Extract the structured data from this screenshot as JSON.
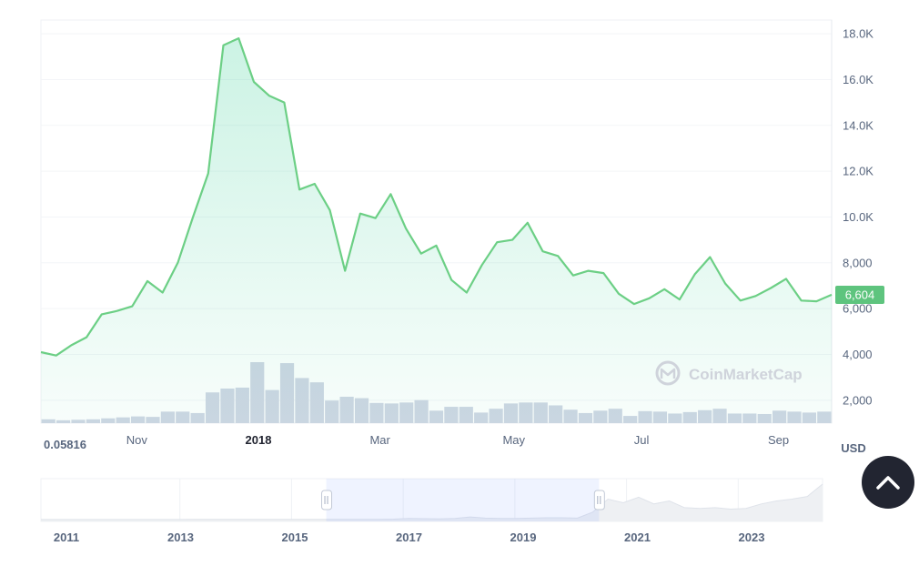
{
  "chart_data": {
    "type": "line",
    "price_series": {
      "values": [
        4100,
        3950,
        4400,
        4750,
        5750,
        5900,
        6100,
        7200,
        6700,
        8000,
        10000,
        11900,
        17500,
        17800,
        15900,
        15300,
        15000,
        11200,
        11450,
        10300,
        7650,
        10150,
        9950,
        11000,
        9500,
        8400,
        8750,
        7250,
        6700,
        7900,
        8900,
        9000,
        9750,
        8500,
        8300,
        7450,
        7650,
        7550,
        6650,
        6200,
        6450,
        6850,
        6400,
        7500,
        8250,
        7100,
        6350,
        6550,
        6900,
        7300,
        6350,
        6320,
        6604
      ],
      "color": "#6ccf85",
      "fill_color": "#16c784"
    },
    "volume_series": {
      "values": [
        0.8,
        0.6,
        0.7,
        0.8,
        1.0,
        1.2,
        1.4,
        1.3,
        2.4,
        2.4,
        2.1,
        6.4,
        7.2,
        7.4,
        12.7,
        6.9,
        12.5,
        9.4,
        8.5,
        4.7,
        5.5,
        5.2,
        4.2,
        4.1,
        4.3,
        4.8,
        2.6,
        3.4,
        3.4,
        2.2,
        3.0,
        4.1,
        4.3,
        4.3,
        3.7,
        2.8,
        2.1,
        2.6,
        3.0,
        1.5,
        2.5,
        2.4,
        2.0,
        2.3,
        2.7,
        3.0,
        2.0,
        2.0,
        1.9,
        2.6,
        2.4,
        2.2,
        2.4
      ],
      "color": "#cfd6e4"
    },
    "y_axis": {
      "unit": "USD",
      "range": [
        1000,
        18600
      ],
      "ticks": [
        {
          "value": 2000,
          "label": "2,000"
        },
        {
          "value": 4000,
          "label": "4,000"
        },
        {
          "value": 6000,
          "label": "6,000"
        },
        {
          "value": 8000,
          "label": "8,000"
        },
        {
          "value": 10000,
          "label": "10.0K"
        },
        {
          "value": 12000,
          "label": "12.0K"
        },
        {
          "value": 14000,
          "label": "14.0K"
        },
        {
          "value": 16000,
          "label": "16.0K"
        },
        {
          "value": 18000,
          "label": "18.0K"
        }
      ]
    },
    "x_axis": {
      "start_label": "0.05816",
      "ticks": [
        {
          "index": 6.3,
          "label": "Nov",
          "bold": false
        },
        {
          "index": 14.3,
          "label": "2018",
          "bold": true
        },
        {
          "index": 22.3,
          "label": "Mar",
          "bold": false
        },
        {
          "index": 31.1,
          "label": "May",
          "bold": false
        },
        {
          "index": 39.5,
          "label": "Jul",
          "bold": false
        },
        {
          "index": 48.5,
          "label": "Sep",
          "bold": false
        }
      ]
    },
    "current_price": {
      "value": 6604,
      "label": "6,604",
      "color": "#5ec47e"
    },
    "watermark": "CoinMarketCap",
    "navigator": {
      "year_labels": [
        "2011",
        "2013",
        "2015",
        "2017",
        "2019",
        "2021",
        "2023"
      ],
      "selection": {
        "from_fraction": 0.365,
        "to_fraction": 0.714
      },
      "series": [
        0.002,
        0.002,
        0.002,
        0.002,
        0.002,
        0.002,
        0.003,
        0.003,
        0.003,
        0.003,
        0.004,
        0.004,
        0.004,
        0.005,
        0.004,
        0.004,
        0.004,
        0.004,
        0.004,
        0.004,
        0.005,
        0.006,
        0.006,
        0.012,
        0.03,
        0.025,
        0.02,
        0.03,
        0.07,
        0.04,
        0.03,
        0.03,
        0.04,
        0.05,
        0.05,
        0.04,
        0.2,
        0.55,
        0.45,
        0.6,
        0.42,
        0.5,
        0.32,
        0.3,
        0.32,
        0.28,
        0.3,
        0.42,
        0.5,
        0.55,
        0.62,
        0.95
      ]
    }
  }
}
